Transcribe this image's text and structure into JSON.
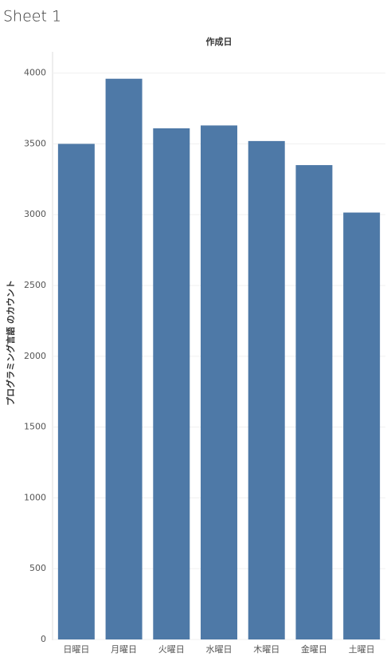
{
  "chart_data": {
    "type": "bar",
    "title": "Sheet 1",
    "x_label": "作成日",
    "y_label": "プログラミング言語 のカウント",
    "categories": [
      "日曜日",
      "月曜日",
      "火曜日",
      "水曜日",
      "木曜日",
      "金曜日",
      "土曜日"
    ],
    "values": [
      3500,
      3960,
      3610,
      3630,
      3520,
      3350,
      3015
    ],
    "color": "#4e79a7",
    "ylim": [
      0,
      4150
    ],
    "yticks": [
      0,
      500,
      1000,
      1500,
      2000,
      2500,
      3000,
      3500,
      4000
    ],
    "grid": true
  }
}
